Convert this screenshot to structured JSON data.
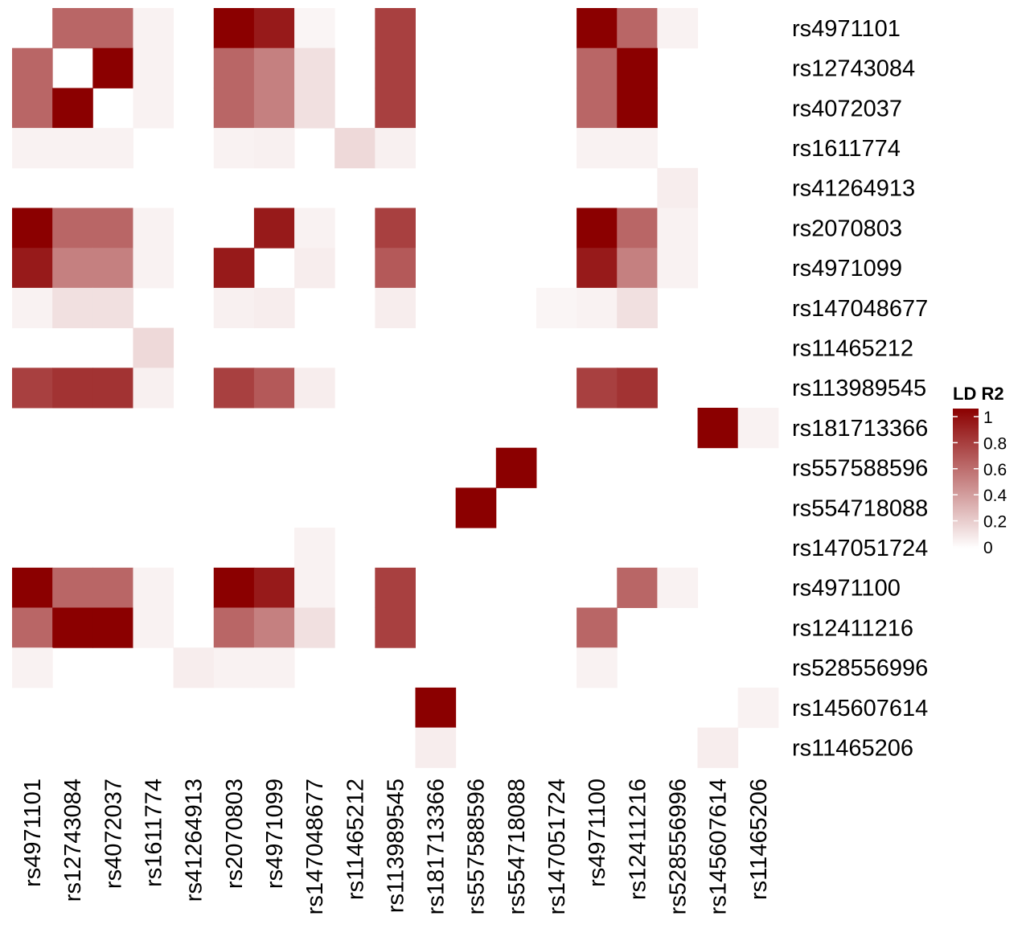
{
  "chart_data": {
    "type": "heatmap",
    "title": "",
    "xlabel": "",
    "ylabel": "",
    "labels": [
      "rs4971101",
      "rs12743084",
      "rs4072037",
      "rs1611774",
      "rs41264913",
      "rs2070803",
      "rs4971099",
      "rs147048677",
      "rs11465212",
      "rs113989545",
      "rs181713366",
      "rs557588596",
      "rs554718088",
      "rs147051724",
      "rs4971100",
      "rs12411216",
      "rs528556996",
      "rs145607614",
      "rs11465206"
    ],
    "legend": {
      "title": "LD R2",
      "ticks": [
        "0",
        "0.2",
        "0.4",
        "0.6",
        "0.8",
        "1"
      ],
      "tick_values": [
        0,
        0.2,
        0.4,
        0.6,
        0.8,
        1
      ],
      "range": [
        0,
        1
      ],
      "color_low": "#ffffff",
      "color_high": "#8b0000",
      "position": "right"
    },
    "values": [
      [
        null,
        0.6,
        0.6,
        0.05,
        null,
        1,
        0.9,
        0.04,
        null,
        0.75,
        null,
        null,
        null,
        null,
        1,
        0.6,
        0.05,
        null,
        null
      ],
      [
        0.6,
        null,
        1,
        0.05,
        null,
        0.6,
        0.5,
        0.12,
        null,
        0.75,
        null,
        null,
        null,
        null,
        0.6,
        1,
        null,
        null,
        null
      ],
      [
        0.6,
        1,
        null,
        0.05,
        null,
        0.6,
        0.5,
        0.12,
        null,
        0.75,
        null,
        null,
        null,
        null,
        0.6,
        1,
        null,
        null,
        null
      ],
      [
        0.05,
        0.05,
        0.05,
        null,
        null,
        0.05,
        0.06,
        null,
        0.15,
        0.06,
        null,
        null,
        null,
        null,
        0.05,
        0.05,
        null,
        null,
        null
      ],
      [
        null,
        null,
        null,
        null,
        null,
        null,
        null,
        null,
        null,
        null,
        null,
        null,
        null,
        null,
        null,
        null,
        0.07,
        null,
        null
      ],
      [
        1,
        0.6,
        0.6,
        0.05,
        null,
        null,
        0.9,
        0.05,
        null,
        0.75,
        null,
        null,
        null,
        null,
        1,
        0.6,
        0.05,
        null,
        null
      ],
      [
        0.9,
        0.5,
        0.5,
        0.05,
        null,
        0.9,
        null,
        0.07,
        null,
        0.65,
        null,
        null,
        null,
        null,
        0.9,
        0.5,
        0.05,
        null,
        null
      ],
      [
        0.05,
        0.12,
        0.12,
        null,
        null,
        0.06,
        0.07,
        null,
        null,
        0.07,
        null,
        null,
        null,
        0.04,
        0.05,
        0.12,
        null,
        null,
        null
      ],
      [
        null,
        null,
        null,
        0.15,
        null,
        null,
        null,
        null,
        null,
        null,
        null,
        null,
        null,
        null,
        null,
        null,
        null,
        null,
        null
      ],
      [
        0.75,
        0.8,
        0.8,
        0.06,
        null,
        0.75,
        0.65,
        0.07,
        null,
        null,
        null,
        null,
        null,
        null,
        0.75,
        0.8,
        null,
        null,
        null
      ],
      [
        null,
        null,
        null,
        null,
        null,
        null,
        null,
        null,
        null,
        null,
        null,
        null,
        null,
        null,
        null,
        null,
        null,
        1,
        0.05
      ],
      [
        null,
        null,
        null,
        null,
        null,
        null,
        null,
        null,
        null,
        null,
        null,
        null,
        1,
        null,
        null,
        null,
        null,
        null,
        null
      ],
      [
        null,
        null,
        null,
        null,
        null,
        null,
        null,
        null,
        null,
        null,
        null,
        1,
        null,
        null,
        null,
        null,
        null,
        null,
        null
      ],
      [
        null,
        null,
        null,
        null,
        null,
        null,
        null,
        0.05,
        null,
        null,
        null,
        null,
        null,
        null,
        null,
        null,
        null,
        null,
        null
      ],
      [
        1,
        0.6,
        0.6,
        0.05,
        null,
        1,
        0.9,
        0.05,
        null,
        0.75,
        null,
        null,
        null,
        null,
        null,
        0.6,
        0.05,
        null,
        null
      ],
      [
        0.6,
        1,
        1,
        0.05,
        null,
        0.6,
        0.5,
        0.12,
        null,
        0.75,
        null,
        null,
        null,
        null,
        0.6,
        null,
        null,
        null,
        null
      ],
      [
        0.05,
        null,
        null,
        null,
        0.07,
        0.05,
        0.05,
        null,
        null,
        null,
        null,
        null,
        null,
        null,
        0.05,
        null,
        null,
        null,
        null
      ],
      [
        null,
        null,
        null,
        null,
        null,
        null,
        null,
        null,
        null,
        null,
        1,
        null,
        null,
        null,
        null,
        null,
        null,
        null,
        0.05
      ],
      [
        null,
        null,
        null,
        null,
        null,
        null,
        null,
        null,
        null,
        null,
        0.07,
        null,
        null,
        null,
        null,
        null,
        null,
        0.07,
        null
      ]
    ]
  }
}
